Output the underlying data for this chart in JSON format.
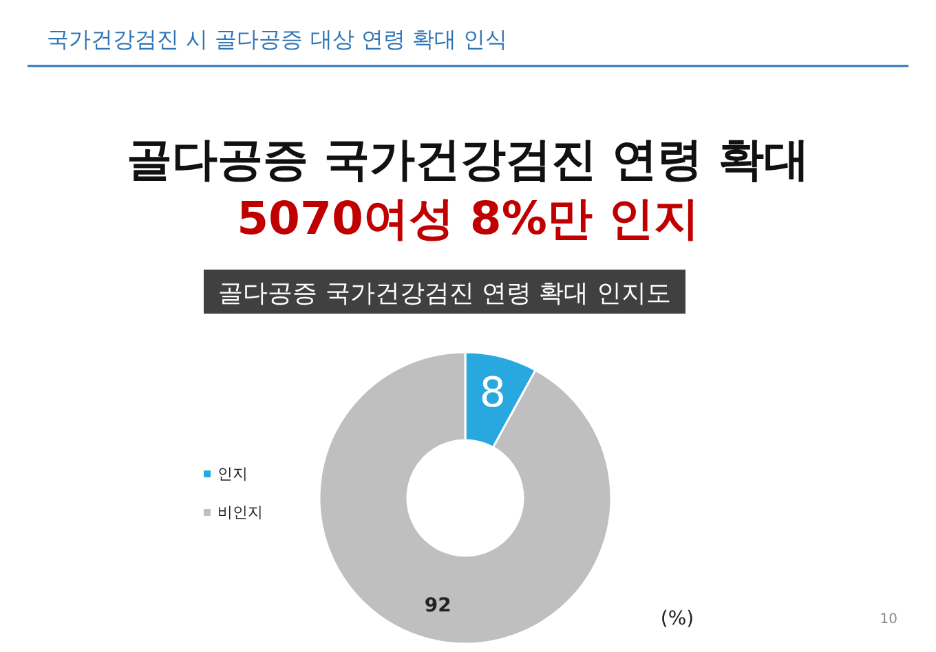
{
  "chart_data": {
    "type": "donut",
    "title": "골다공증 국가건강검진 연령 확대",
    "subtitle": "5070여성 8%만 인지",
    "categories": [
      "인지",
      "비인지"
    ],
    "values": [
      8,
      92
    ],
    "colors": [
      "#29a8df",
      "#bfbfbf"
    ],
    "data_labels": true,
    "legend": "left",
    "annotations": [
      "국가건강검진 시 골다공증 대상 연령 확대 인식",
      "골다공증 국가건강검진 연령 확대 인지도",
      "(%)",
      "10"
    ]
  }
}
